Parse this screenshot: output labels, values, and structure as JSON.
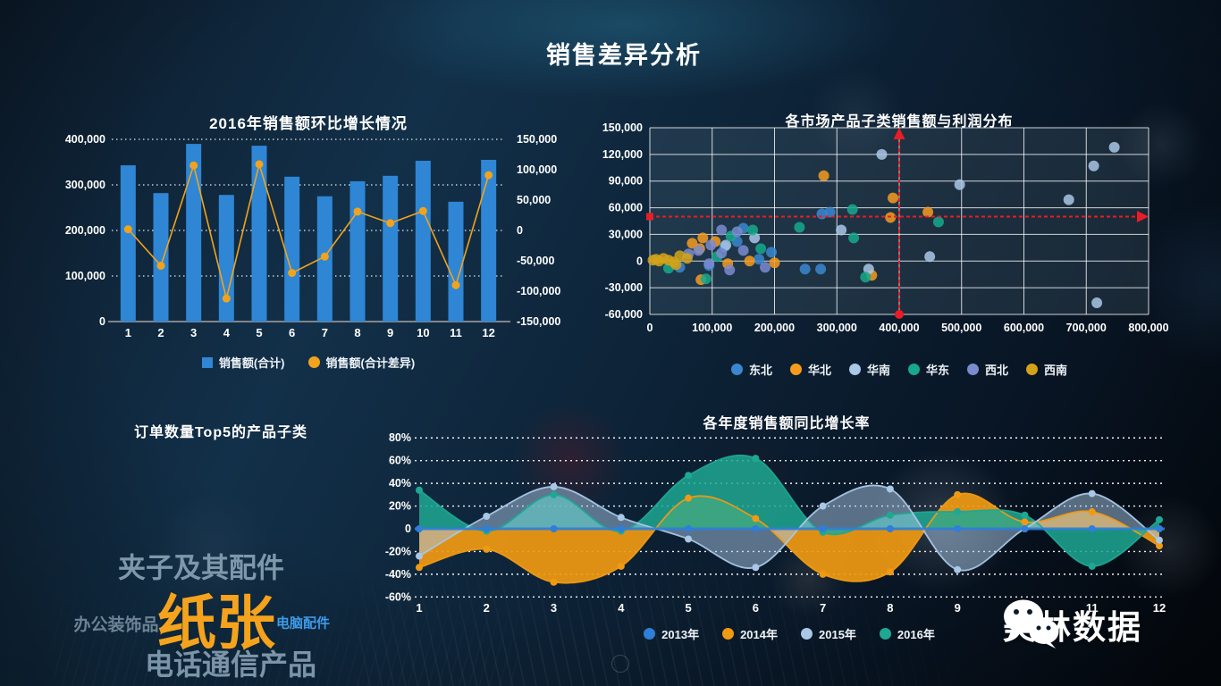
{
  "page": {
    "title": "销售差异分析"
  },
  "watermark": {
    "name": "美林数据",
    "icon": "wechat-icon"
  },
  "colors": {
    "bar_blue": "#2e86d5",
    "diff_orange": "#f2a31c",
    "reference_red": "#ea1c24",
    "axis_text": "#ffffff",
    "grid_white": "rgba(255,255,255,0.8)"
  },
  "chart_data": [
    {
      "id": "monthly_growth",
      "type": "bar",
      "title": "2016年销售额环比增长情况",
      "categories": [
        "1",
        "2",
        "3",
        "4",
        "5",
        "6",
        "7",
        "8",
        "9",
        "10",
        "11",
        "12"
      ],
      "series": [
        {
          "name": "销售额(合计)",
          "kind": "bar",
          "axis": "left",
          "color": "#2e86d5",
          "values": [
            343000,
            282000,
            390000,
            278000,
            386000,
            318000,
            275000,
            308000,
            320000,
            353000,
            263000,
            355000
          ]
        },
        {
          "name": "销售额(合计差异)",
          "kind": "line",
          "axis": "right",
          "color": "#f2a31c",
          "values": [
            2000,
            -58000,
            107000,
            -112000,
            109000,
            -70000,
            -43000,
            31000,
            12000,
            32000,
            -90000,
            91000
          ]
        }
      ],
      "left_axis": {
        "min": 0,
        "max": 400000,
        "ticks": [
          "400,000",
          "300,000",
          "200,000",
          "100,000",
          "0"
        ]
      },
      "right_axis": {
        "min": -150000,
        "max": 150000,
        "ticks": [
          "150,000",
          "100,000",
          "50,000",
          "0",
          "-50,000",
          "-100,000",
          "-150,000"
        ]
      },
      "grid": "dotted",
      "legend_position": "bottom"
    },
    {
      "id": "market_profit_scatter",
      "type": "scatter",
      "title": "各市场产品子类销售额与利润分布",
      "x_axis": {
        "min": 0,
        "max": 800000,
        "ticks": [
          "0",
          "100,000",
          "200,000",
          "300,000",
          "400,000",
          "500,000",
          "600,000",
          "700,000",
          "800,000"
        ]
      },
      "y_axis": {
        "min": -60000,
        "max": 150000,
        "ticks": [
          "150,000",
          "120,000",
          "90,000",
          "60,000",
          "30,000",
          "0",
          "-30,000",
          "-60,000"
        ]
      },
      "reference_lines": {
        "x": 400000,
        "y": 50000,
        "color": "#ea1c24",
        "style": "dashed-arrow"
      },
      "grid": "solid",
      "legend_position": "bottom",
      "series": [
        {
          "name": "东北",
          "color": "#3a87d0",
          "points": [
            [
              276000,
              53000
            ],
            [
              289000,
              55000
            ],
            [
              249000,
              -9000
            ],
            [
              274000,
              -9000
            ],
            [
              48000,
              -7000
            ],
            [
              95000,
              -5000
            ],
            [
              120000,
              16000
            ],
            [
              140000,
              22000
            ],
            [
              175000,
              2000
            ],
            [
              195000,
              10000
            ],
            [
              150000,
              37000
            ]
          ]
        },
        {
          "name": "华北",
          "color": "#f79b1e",
          "points": [
            [
              279000,
              96000
            ],
            [
              390000,
              71000
            ],
            [
              386000,
              49000
            ],
            [
              446000,
              55000
            ],
            [
              356000,
              -16000
            ],
            [
              68000,
              20000
            ],
            [
              80000,
              14000
            ],
            [
              85000,
              26000
            ],
            [
              105000,
              22000
            ],
            [
              160000,
              0
            ],
            [
              200000,
              -2000
            ],
            [
              82000,
              -21000
            ],
            [
              125000,
              -3000
            ]
          ]
        },
        {
          "name": "华南",
          "color": "#a9c7e6",
          "points": [
            [
              745000,
              128000
            ],
            [
              712000,
              107000
            ],
            [
              672000,
              69000
            ],
            [
              717000,
              -47000
            ],
            [
              497000,
              86000
            ],
            [
              372000,
              120000
            ],
            [
              449000,
              5000
            ],
            [
              307000,
              35000
            ],
            [
              351000,
              -9000
            ],
            [
              122000,
              18000
            ],
            [
              168000,
              26000
            ]
          ]
        },
        {
          "name": "华东",
          "color": "#16a98c",
          "points": [
            [
              463000,
              44000
            ],
            [
              325000,
              58000
            ],
            [
              327000,
              26000
            ],
            [
              346000,
              -18000
            ],
            [
              240000,
              38000
            ],
            [
              90000,
              -20000
            ],
            [
              130000,
              28000
            ],
            [
              165000,
              35000
            ],
            [
              178000,
              14000
            ],
            [
              108000,
              5000
            ],
            [
              30000,
              -8000
            ]
          ]
        },
        {
          "name": "西北",
          "color": "#7b8bd0",
          "points": [
            [
              62000,
              8000
            ],
            [
              78000,
              12000
            ],
            [
              98000,
              18000
            ],
            [
              115000,
              9000
            ],
            [
              150000,
              12000
            ],
            [
              185000,
              -7000
            ],
            [
              128000,
              -10000
            ],
            [
              140000,
              33000
            ],
            [
              115000,
              35000
            ],
            [
              95000,
              -3000
            ]
          ]
        },
        {
          "name": "西南",
          "color": "#d2a31a",
          "points": [
            [
              5000,
              1000
            ],
            [
              10000,
              2000
            ],
            [
              15000,
              0
            ],
            [
              22000,
              3000
            ],
            [
              30000,
              1000
            ],
            [
              38000,
              -1000
            ],
            [
              48000,
              6000
            ],
            [
              60000,
              3000
            ],
            [
              42000,
              -4000
            ]
          ]
        }
      ]
    },
    {
      "id": "top5_subcategories",
      "type": "wordcloud",
      "title": "订单数量Top5的产品子类",
      "words": [
        {
          "text": "夹子及其配件",
          "size": 31,
          "color": "#7e97ab",
          "x": 225,
          "y": 113
        },
        {
          "text": "纸张",
          "size": 66,
          "color": "#f5a31d",
          "x": 242,
          "y": 172
        },
        {
          "text": "办公装饰品",
          "size": 19,
          "color": "#6d8395",
          "x": 130,
          "y": 178
        },
        {
          "text": "电脑配件",
          "size": 15,
          "color": "#3d9be9",
          "x": 339,
          "y": 177
        },
        {
          "text": "电话通信产品",
          "size": 32,
          "color": "#7b94a8",
          "x": 258,
          "y": 222
        }
      ]
    },
    {
      "id": "yoy_growth",
      "type": "area",
      "title": "各年度销售额同比增长率",
      "categories": [
        "1",
        "2",
        "3",
        "4",
        "5",
        "6",
        "7",
        "8",
        "9",
        "10",
        "11",
        "12"
      ],
      "y_axis": {
        "min": -60,
        "max": 80,
        "unit": "%",
        "ticks": [
          "80%",
          "60%",
          "40%",
          "20%",
          "0",
          "-20%",
          "-40%",
          "-60%"
        ]
      },
      "grid": "dotted",
      "legend_position": "bottom",
      "series": [
        {
          "name": "2013年",
          "color": "#2f7ed8",
          "fill_opacity": 0,
          "values": [
            0,
            0,
            0,
            0,
            0,
            0,
            0,
            0,
            0,
            0,
            0,
            0
          ]
        },
        {
          "name": "2014年",
          "color": "#f09a12",
          "fill_opacity": 0.92,
          "values": [
            -34,
            -18,
            -47,
            -33,
            27,
            9,
            -40,
            -38,
            30,
            6,
            15,
            -15
          ]
        },
        {
          "name": "2015年",
          "color": "#a9c7e6",
          "fill_opacity": 0.5,
          "values": [
            -24,
            11,
            37,
            10,
            -9,
            -34,
            20,
            35,
            -36,
            0,
            31,
            -10
          ]
        },
        {
          "name": "2016年",
          "color": "#1ea893",
          "fill_opacity": 0.85,
          "values": [
            34,
            -2,
            30,
            -2,
            47,
            62,
            -3,
            12,
            15,
            12,
            -33,
            8
          ]
        }
      ]
    }
  ]
}
